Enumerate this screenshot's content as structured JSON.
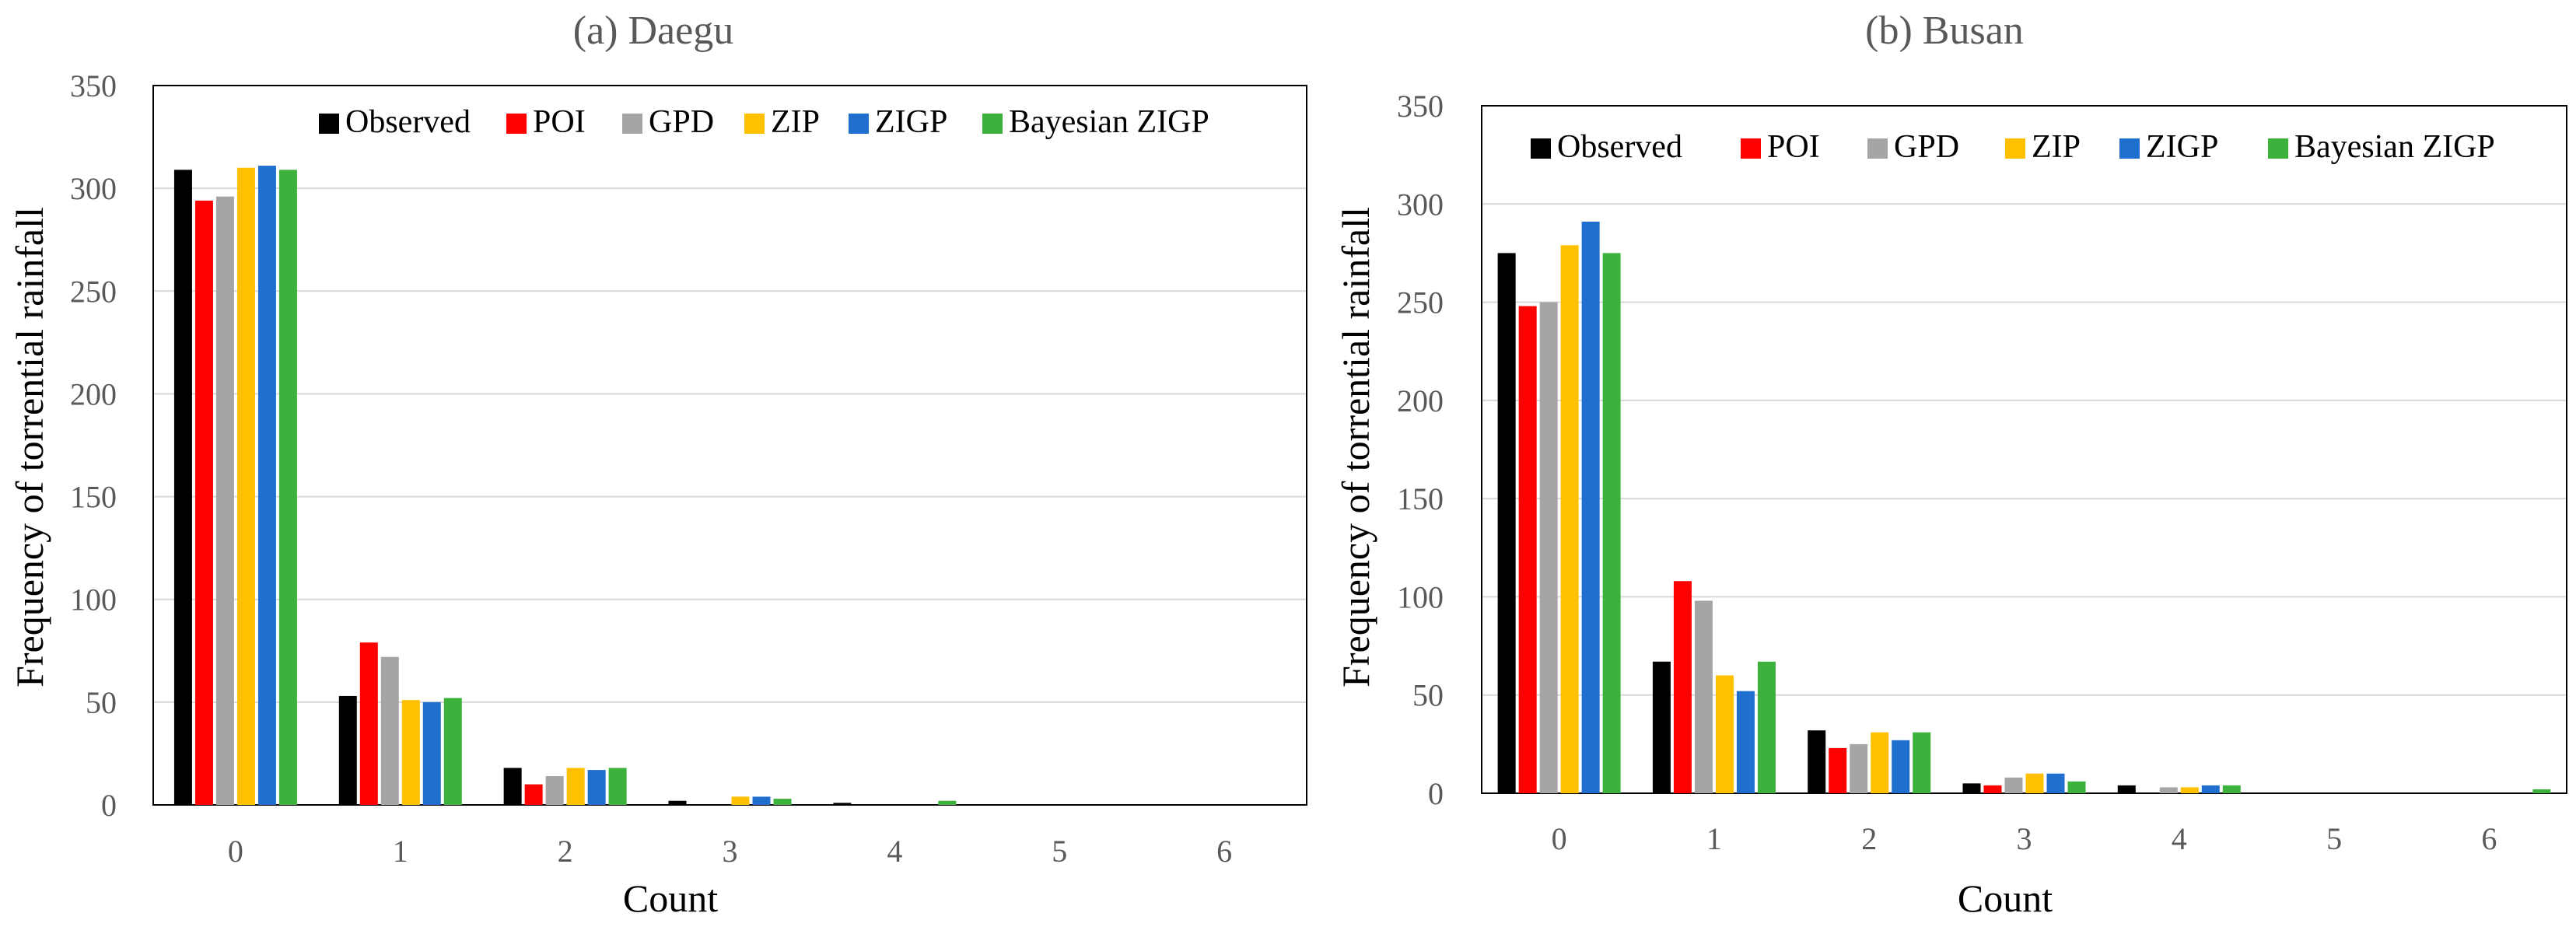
{
  "colors": {
    "Observed": "#000000",
    "POI": "#ff0000",
    "GPD": "#a5a5a5",
    "ZIP": "#ffc000",
    "ZIGP": "#1f6fcf",
    "Bayesian ZIGP": "#3cb23c",
    "grid": "#d9d9d9",
    "axis": "#000000",
    "title_text": "#595959",
    "label_text": "#000000",
    "tick_text": "#595959"
  },
  "chart_data": [
    {
      "type": "bar",
      "title": "(a) Daegu",
      "xlabel": "Count",
      "ylabel": "Frequency of torrential rainfall",
      "categories": [
        "0",
        "1",
        "2",
        "3",
        "4",
        "5",
        "6"
      ],
      "yticks": [
        "0",
        "50",
        "100",
        "150",
        "200",
        "250",
        "300",
        "350"
      ],
      "ylim": [
        0,
        350
      ],
      "grid": true,
      "legend_position": "top",
      "series": [
        {
          "name": "Observed",
          "values": [
            309,
            53,
            18,
            2,
            1,
            0,
            0
          ]
        },
        {
          "name": "POI",
          "values": [
            294,
            79,
            10,
            0,
            0,
            0,
            0
          ]
        },
        {
          "name": "GPD",
          "values": [
            296,
            72,
            14,
            0,
            0,
            0,
            0
          ]
        },
        {
          "name": "ZIP",
          "values": [
            310,
            51,
            18,
            4,
            0,
            0,
            0
          ]
        },
        {
          "name": "ZIGP",
          "values": [
            311,
            50,
            17,
            4,
            0,
            0,
            0
          ]
        },
        {
          "name": "Bayesian ZIGP",
          "values": [
            309,
            52,
            18,
            3,
            2,
            0,
            0
          ]
        }
      ]
    },
    {
      "type": "bar",
      "title": "(b) Busan",
      "xlabel": "Count",
      "ylabel": "Frequency of torrential rainfall",
      "categories": [
        "0",
        "1",
        "2",
        "3",
        "4",
        "5",
        "6"
      ],
      "yticks": [
        "0",
        "50",
        "100",
        "150",
        "200",
        "250",
        "300",
        "350"
      ],
      "ylim": [
        0,
        350
      ],
      "grid": true,
      "legend_position": "top",
      "series": [
        {
          "name": "Observed",
          "values": [
            275,
            67,
            32,
            5,
            4,
            0,
            0
          ]
        },
        {
          "name": "POI",
          "values": [
            248,
            108,
            23,
            4,
            0,
            0,
            0
          ]
        },
        {
          "name": "GPD",
          "values": [
            250,
            98,
            25,
            8,
            3,
            0,
            0
          ]
        },
        {
          "name": "ZIP",
          "values": [
            279,
            60,
            31,
            10,
            3,
            0,
            0
          ]
        },
        {
          "name": "ZIGP",
          "values": [
            291,
            52,
            27,
            10,
            4,
            0,
            0
          ]
        },
        {
          "name": "Bayesian ZIGP",
          "values": [
            275,
            67,
            31,
            6,
            4,
            0,
            2
          ]
        }
      ]
    }
  ]
}
